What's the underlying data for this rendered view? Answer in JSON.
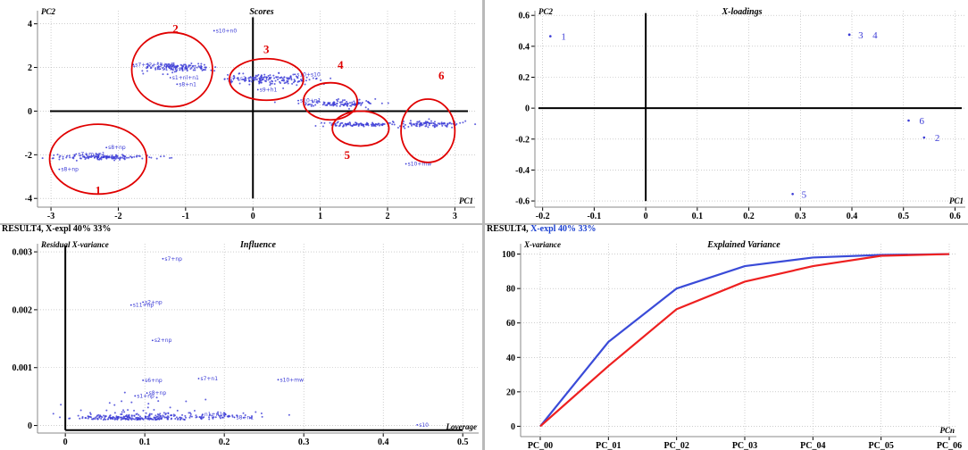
{
  "status": {
    "left_prefix": "RESULT4, X-expl 40% 33%",
    "right_prefix": "RESULT4,",
    "right_blue": "X-expl 40% 33%"
  },
  "colors": {
    "points": "#3b3bd6",
    "annotation": "#e00000",
    "series1": "#3a4bd8",
    "series2": "#ee2020"
  },
  "chart_data": [
    {
      "type": "scatter",
      "title": "Scores",
      "xlabel": "PC1",
      "ylabel": "PC2",
      "xlim": [
        -3.2,
        3.3
      ],
      "ylim": [
        -4.4,
        4.6
      ],
      "xticks": [
        -3,
        -2,
        -1,
        0,
        1,
        2,
        3
      ],
      "yticks": [
        -4,
        -2,
        0,
        2,
        4
      ],
      "xtick_labels": [
        "-3",
        "-2",
        "-1",
        "0",
        "1",
        "2",
        "3"
      ],
      "ytick_labels": [
        "-4",
        "-2",
        "0",
        "2",
        "4"
      ],
      "grid": true,
      "clusters": [
        {
          "x": -2.2,
          "y": -2.1,
          "sx": 0.35,
          "sy": 0.06,
          "n": 140
        },
        {
          "x": -1.1,
          "y": 2.0,
          "sx": 0.28,
          "sy": 0.1,
          "n": 120
        },
        {
          "x": 0.2,
          "y": 1.45,
          "sx": 0.35,
          "sy": 0.12,
          "n": 150
        },
        {
          "x": 1.3,
          "y": 0.35,
          "sx": 0.28,
          "sy": 0.08,
          "n": 110
        },
        {
          "x": 1.55,
          "y": -0.6,
          "sx": 0.25,
          "sy": 0.05,
          "n": 100
        },
        {
          "x": 2.6,
          "y": -0.6,
          "sx": 0.3,
          "sy": 0.08,
          "n": 100
        }
      ],
      "point_labels": [
        {
          "x": -2.15,
          "y": -1.75,
          "text": "s8+np"
        },
        {
          "x": -2.6,
          "y": -2.05,
          "text": "s7+m+n1"
        },
        {
          "x": -2.85,
          "y": -2.75,
          "text": "s8+np"
        },
        {
          "x": -1.75,
          "y": 2.05,
          "text": "s7+s2+s3+n1"
        },
        {
          "x": -1.35,
          "y": 1.85,
          "text": "s1+nl+n1"
        },
        {
          "x": -1.2,
          "y": 1.45,
          "text": "s1+nl+n1"
        },
        {
          "x": -1.1,
          "y": 1.15,
          "text": "s8+n1"
        },
        {
          "x": -0.55,
          "y": 3.6,
          "text": "s10+n0"
        },
        {
          "x": -0.35,
          "y": 1.4,
          "text": "s7+s2+s4+n1"
        },
        {
          "x": 0.65,
          "y": 1.6,
          "text": "s10+s10"
        },
        {
          "x": 0.1,
          "y": 0.9,
          "text": "s9+h1"
        },
        {
          "x": 0.7,
          "y": 0.4,
          "text": "s10+n1"
        },
        {
          "x": 2.3,
          "y": -2.5,
          "text": "s10+mw"
        }
      ],
      "annotations": [
        {
          "label": "1",
          "cx": -2.3,
          "cy": -2.2,
          "rx": 0.72,
          "ry": 1.6,
          "lx": -2.3,
          "ly": -3.8
        },
        {
          "label": "2",
          "cx": -1.2,
          "cy": 1.9,
          "rx": 0.6,
          "ry": 1.7,
          "lx": -1.15,
          "ly": 3.6
        },
        {
          "label": "3",
          "cx": 0.2,
          "cy": 1.45,
          "rx": 0.55,
          "ry": 0.95,
          "lx": 0.2,
          "ly": 2.65
        },
        {
          "label": "4",
          "cx": 1.15,
          "cy": 0.45,
          "rx": 0.4,
          "ry": 0.85,
          "lx": 1.3,
          "ly": 1.95
        },
        {
          "label": "5",
          "cx": 1.6,
          "cy": -0.8,
          "rx": 0.42,
          "ry": 0.8,
          "lx": 1.4,
          "ly": -2.2
        },
        {
          "label": "6",
          "cx": 2.6,
          "cy": -0.9,
          "rx": 0.4,
          "ry": 1.45,
          "lx": 2.8,
          "ly": 1.45
        }
      ]
    },
    {
      "type": "scatter",
      "title": "X-loadings",
      "xlabel": "PC1",
      "ylabel": "PC2",
      "xlim": [
        -0.215,
        0.62
      ],
      "ylim": [
        -0.64,
        0.63
      ],
      "xticks": [
        -0.2,
        -0.1,
        0,
        0.1,
        0.2,
        0.3,
        0.4,
        0.5,
        0.6
      ],
      "yticks": [
        -0.6,
        -0.4,
        -0.2,
        0,
        0.2,
        0.4,
        0.6
      ],
      "xtick_labels": [
        "-0.2",
        "-0.1",
        "0",
        "0.1",
        "0.2",
        "0.3",
        "0.4",
        "0.5",
        "0.6"
      ],
      "ytick_labels": [
        "-0.6",
        "-0.4",
        "-0.2",
        "0",
        "0.2",
        "0.4",
        "0.6"
      ],
      "grid": true,
      "points": [
        {
          "x": -0.185,
          "y": 0.465,
          "label": "1"
        },
        {
          "x": 0.54,
          "y": -0.19,
          "label": "2"
        },
        {
          "x": 0.395,
          "y": 0.475,
          "label": "3"
        },
        {
          "x": 0.395,
          "y": 0.475,
          "label": "4"
        },
        {
          "x": 0.285,
          "y": -0.555,
          "label": "5"
        },
        {
          "x": 0.51,
          "y": -0.08,
          "label": "6"
        }
      ]
    },
    {
      "type": "scatter",
      "title": "Influence",
      "xlabel": "Loverage",
      "ylabel": "Residual X-variance",
      "xlim": [
        -0.035,
        0.52
      ],
      "ylim": [
        -0.00013,
        0.00314
      ],
      "xticks": [
        0,
        0.1,
        0.2,
        0.3,
        0.4,
        0.5
      ],
      "yticks": [
        0,
        0.001,
        0.002,
        0.003
      ],
      "xtick_labels": [
        "0",
        "0.1",
        "0.2",
        "0.3",
        "0.4",
        "0.5"
      ],
      "ytick_labels": [
        "0",
        "0.001",
        "0.002",
        "0.003"
      ],
      "grid": true,
      "clusters": [
        {
          "x": 0.09,
          "y": 0.0001,
          "sx": 0.04,
          "sy": 5e-05,
          "n": 260
        },
        {
          "x": 0.2,
          "y": 0.00013,
          "sx": 0.025,
          "sy": 3e-05,
          "n": 45
        }
      ],
      "point_labels": [
        {
          "x": 0.125,
          "y": 0.00285,
          "text": "s7+np"
        },
        {
          "x": 0.1,
          "y": 0.0021,
          "text": "s2+np"
        },
        {
          "x": 0.085,
          "y": 0.00205,
          "text": "s11+np"
        },
        {
          "x": 0.112,
          "y": 0.00144,
          "text": "s2+np"
        },
        {
          "x": 0.1,
          "y": 0.00075,
          "text": "s6+np"
        },
        {
          "x": 0.17,
          "y": 0.00078,
          "text": "s7+n1"
        },
        {
          "x": 0.27,
          "y": 0.00076,
          "text": "s10+mw"
        },
        {
          "x": 0.105,
          "y": 0.00053,
          "text": "s8+np"
        },
        {
          "x": 0.09,
          "y": 0.00048,
          "text": "s1+np"
        },
        {
          "x": 0.215,
          "y": 0.00011,
          "text": "s8+n1"
        },
        {
          "x": 0.175,
          "y": 0.00016,
          "text": "n1+n10"
        },
        {
          "x": 0.445,
          "y": -2e-05,
          "text": "s10"
        }
      ]
    },
    {
      "type": "line",
      "title": "Explained Variance",
      "xlabel": "PCn",
      "ylabel": "X-variance",
      "categories": [
        "PC_00",
        "PC_01",
        "PC_02",
        "PC_03",
        "PC_04",
        "PC_05",
        "PC_06"
      ],
      "ylim": [
        -6,
        106
      ],
      "yticks": [
        0,
        20,
        40,
        60,
        80,
        100
      ],
      "ytick_labels": [
        "0",
        "20",
        "40",
        "60",
        "80",
        "100"
      ],
      "grid": true,
      "series": [
        {
          "values": [
            0,
            49,
            80,
            93,
            98,
            99.5,
            100
          ],
          "color": "#3a4bd8"
        },
        {
          "values": [
            0,
            35,
            68,
            84,
            93,
            99,
            100
          ],
          "color": "#ee2020"
        }
      ]
    }
  ]
}
